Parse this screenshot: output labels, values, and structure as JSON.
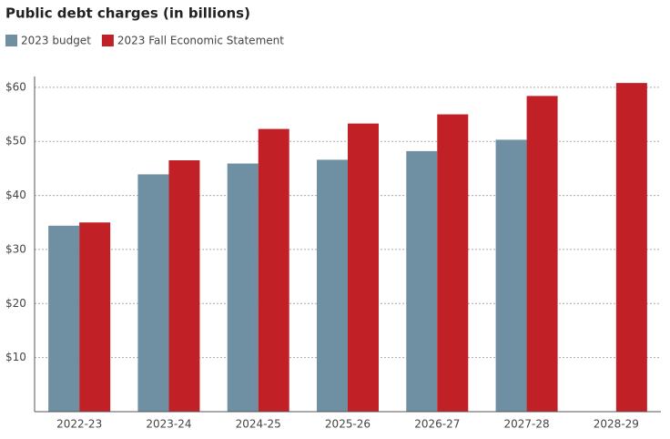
{
  "chart_data": {
    "type": "bar",
    "title": "Public debt charges (in billions)",
    "categories": [
      "2022-23",
      "2023-24",
      "2024-25",
      "2025-26",
      "2026-27",
      "2027-28",
      "2028-29"
    ],
    "series": [
      {
        "name": "2023 budget",
        "color": "#6f8fa3",
        "values": [
          34.4,
          43.9,
          45.9,
          46.6,
          48.2,
          50.3,
          null
        ]
      },
      {
        "name": "2023 Fall Economic Statement",
        "color": "#c02026",
        "values": [
          35.0,
          46.5,
          52.3,
          53.3,
          55.0,
          58.4,
          60.8
        ]
      }
    ],
    "ylim": [
      0,
      62
    ],
    "yticks": [
      {
        "value": 10,
        "label": "$10"
      },
      {
        "value": 20,
        "label": "$20"
      },
      {
        "value": 30,
        "label": "$30"
      },
      {
        "value": 40,
        "label": "$40"
      },
      {
        "value": 50,
        "label": "$50"
      },
      {
        "value": 60,
        "label": "$60"
      }
    ],
    "grid": true
  }
}
